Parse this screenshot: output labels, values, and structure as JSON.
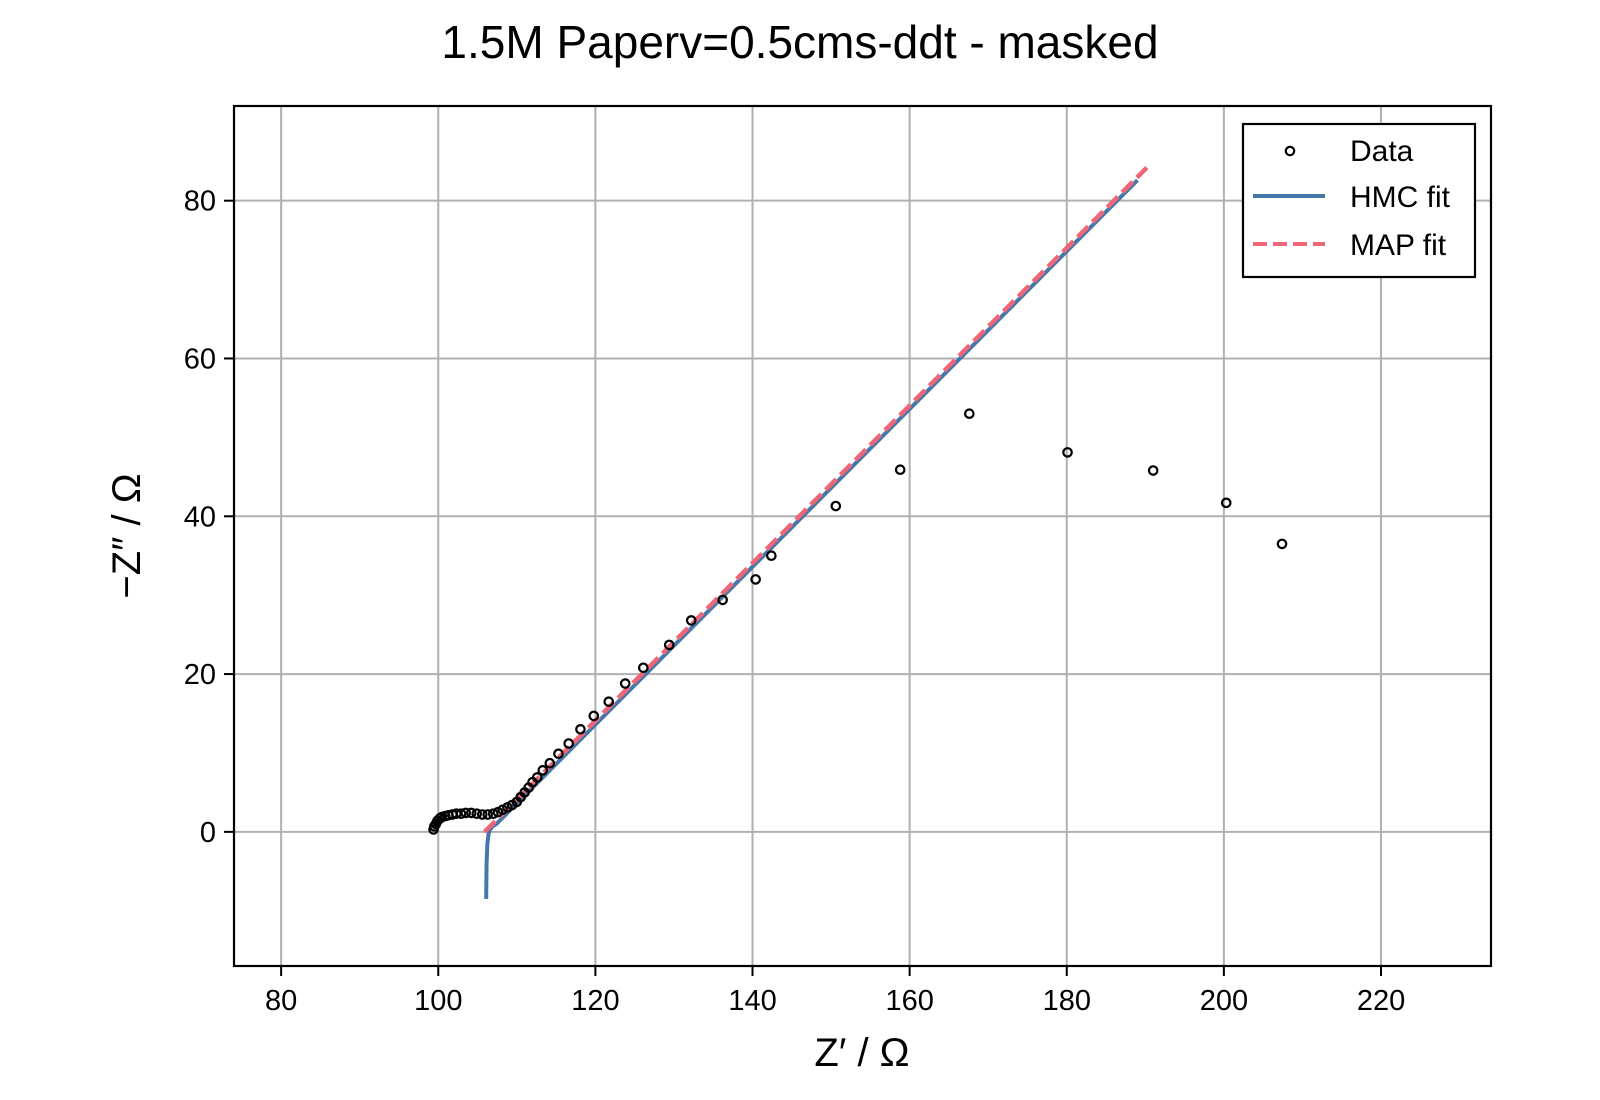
{
  "chart_data": {
    "type": "scatter",
    "title": "1.5M Paperv=0.5cms-ddt - masked",
    "xlabel": "Z′ / Ω",
    "ylabel": "−Z″ / Ω",
    "xlim": [
      74,
      234
    ],
    "ylim": [
      -17,
      92
    ],
    "xticks": [
      80,
      100,
      120,
      140,
      160,
      180,
      200,
      220
    ],
    "yticks": [
      0,
      20,
      40,
      60,
      80
    ],
    "grid": true,
    "legend_position": "top-right",
    "colors": {
      "data": "#000000",
      "hmc": "#4477aa",
      "map": "#ee6677",
      "grid": "#b0b0b0"
    },
    "series": [
      {
        "name": "Data",
        "kind": "scatter",
        "x": [
          99.4,
          99.5,
          99.7,
          99.9,
          100.2,
          100.5,
          100.9,
          101.3,
          101.8,
          102.3,
          102.9,
          103.5,
          104.2,
          104.9,
          105.6,
          106.3,
          107.0,
          107.6,
          108.2,
          108.8,
          109.4,
          110.0,
          110.5,
          111.0,
          111.5,
          112.0,
          112.6,
          113.3,
          114.2,
          115.3,
          116.6,
          118.1,
          119.8,
          121.7,
          123.8,
          126.1,
          129.4,
          132.2,
          136.2,
          140.4,
          142.4,
          150.6,
          158.8,
          167.6,
          180.1,
          191.0,
          200.3,
          207.4
        ],
        "y": [
          0.3,
          0.7,
          1.0,
          1.4,
          1.7,
          1.9,
          2.0,
          2.1,
          2.2,
          2.3,
          2.3,
          2.4,
          2.4,
          2.3,
          2.2,
          2.2,
          2.3,
          2.5,
          2.8,
          3.1,
          3.4,
          3.8,
          4.4,
          5.0,
          5.6,
          6.3,
          6.9,
          7.8,
          8.7,
          9.9,
          11.2,
          13.0,
          14.7,
          16.5,
          18.8,
          20.8,
          23.7,
          26.8,
          29.4,
          32.0,
          35.0,
          41.3,
          45.9,
          53.0,
          48.1,
          45.8,
          41.7,
          36.5
        ]
      },
      {
        "name": "HMC fit",
        "kind": "line",
        "x": [
          106.1,
          106.15,
          106.25,
          106.4,
          106.6,
          106.9,
          107.4,
          189.0
        ],
        "y": [
          -8.5,
          -4.0,
          -1.5,
          -0.3,
          0.3,
          0.7,
          1.0,
          82.6
        ]
      },
      {
        "name": "MAP fit",
        "kind": "line",
        "x": [
          105.9,
          190.2
        ],
        "y": [
          0.0,
          84.2
        ]
      }
    ]
  }
}
